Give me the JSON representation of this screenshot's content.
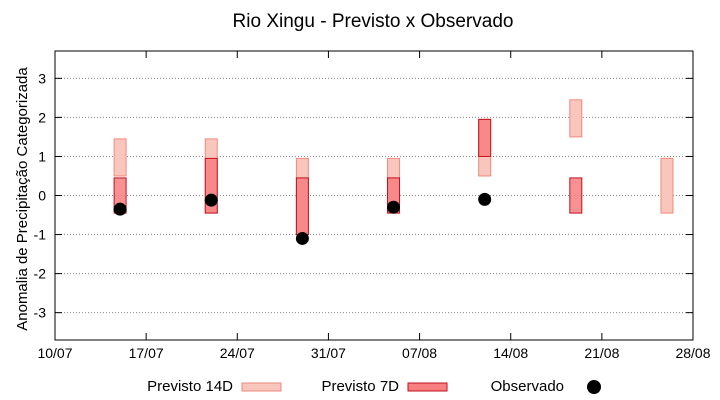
{
  "chart_data": {
    "type": "floating-bar",
    "title": "Rio Xingu - Previsto x Observado",
    "xlabel": "",
    "ylabel": "Anomalia de Precipitação Categorizada",
    "x_ticks": [
      "10/07",
      "17/07",
      "24/07",
      "31/07",
      "07/08",
      "14/08",
      "21/08",
      "28/08"
    ],
    "ylim": [
      -3.7,
      3.7
    ],
    "y_ticks": [
      -3,
      -2,
      -1,
      0,
      1,
      2,
      3
    ],
    "grid": "horizontal-dotted",
    "legend_placement": "bottom",
    "series": [
      {
        "name": "Previsto 14D",
        "kind": "range",
        "color": "#f9c6bd",
        "edge_color": "#f08a7d",
        "points": [
          {
            "x": "15/07",
            "low": 0.5,
            "high": 1.45
          },
          {
            "x": "22/07",
            "low": -0.45,
            "high": 1.45
          },
          {
            "x": "29/07",
            "low": -1.0,
            "high": 0.95
          },
          {
            "x": "05/08",
            "low": -0.45,
            "high": 0.95
          },
          {
            "x": "12/08",
            "low": 0.5,
            "high": 1.95
          },
          {
            "x": "19/08",
            "low": 1.5,
            "high": 2.45
          },
          {
            "x": "26/08",
            "low": -0.45,
            "high": 0.95
          }
        ]
      },
      {
        "name": "Previsto 7D",
        "kind": "range",
        "color": "#f77f7f",
        "edge_color": "#c0101e",
        "points": [
          {
            "x": "15/07",
            "low": -0.45,
            "high": 0.45
          },
          {
            "x": "22/07",
            "low": -0.45,
            "high": 0.95
          },
          {
            "x": "29/07",
            "low": -1.0,
            "high": 0.45
          },
          {
            "x": "05/08",
            "low": -0.45,
            "high": 0.45
          },
          {
            "x": "12/08",
            "low": 1.0,
            "high": 1.95
          },
          {
            "x": "19/08",
            "low": -0.45,
            "high": 0.45
          }
        ]
      },
      {
        "name": "Observado",
        "kind": "point",
        "color": "#000000",
        "points": [
          {
            "x": "15/07",
            "y": -0.35
          },
          {
            "x": "22/07",
            "y": -0.12
          },
          {
            "x": "29/07",
            "y": -1.1
          },
          {
            "x": "05/08",
            "y": -0.3
          },
          {
            "x": "12/08",
            "y": -0.1
          }
        ]
      }
    ]
  }
}
